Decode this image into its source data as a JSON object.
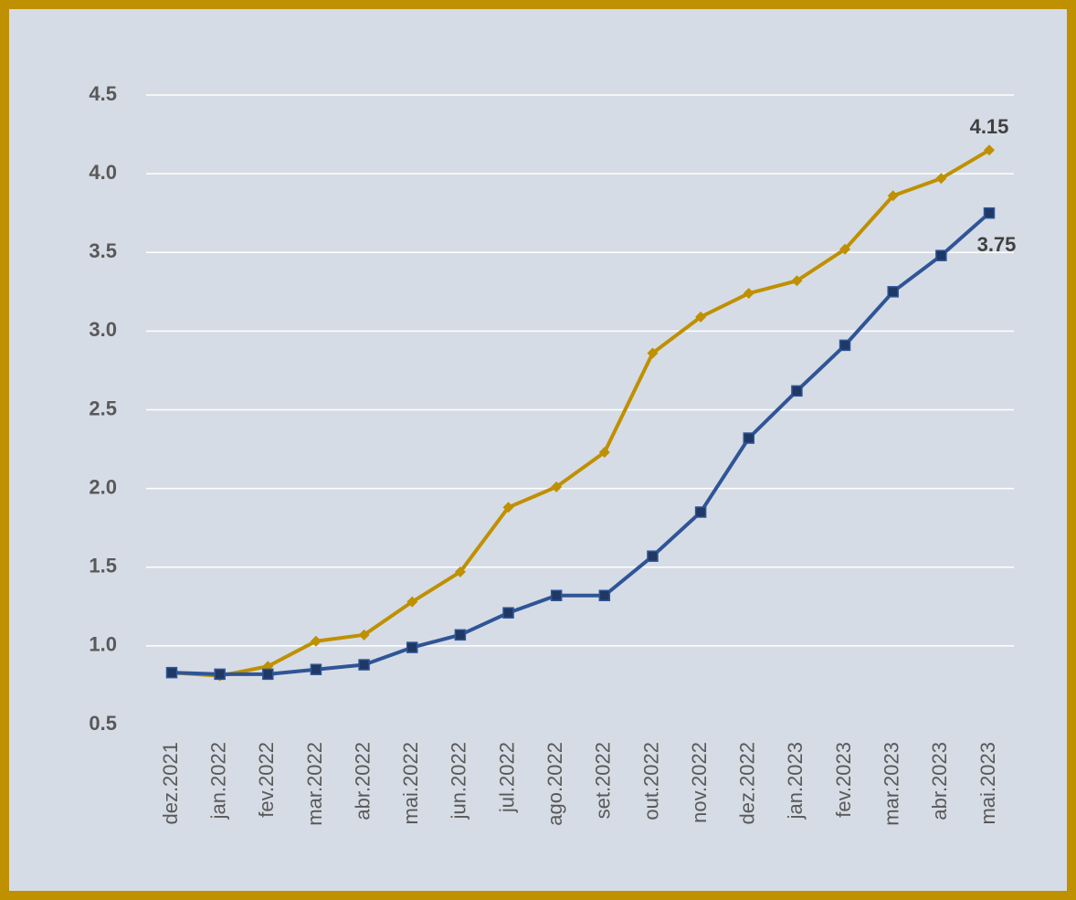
{
  "chart_data": {
    "type": "line",
    "categories": [
      "dez.2021",
      "jan.2022",
      "fev.2022",
      "mar.2022",
      "abr.2022",
      "mai.2022",
      "jun.2022",
      "jul.2022",
      "ago.2022",
      "set.2022",
      "out.2022",
      "nov.2022",
      "dez.2022",
      "jan.2023",
      "fev.2023",
      "mar.2023",
      "abr.2023",
      "mai.2023"
    ],
    "series": [
      {
        "color": "#bf9000",
        "marker": "diamond",
        "values": [
          0.83,
          0.81,
          0.87,
          1.03,
          1.07,
          1.28,
          1.47,
          1.88,
          2.01,
          2.23,
          2.86,
          3.09,
          3.24,
          3.32,
          3.52,
          3.86,
          3.97,
          4.15
        ]
      },
      {
        "color": "#2f5597",
        "marker": "square",
        "values": [
          0.83,
          0.82,
          0.82,
          0.85,
          0.88,
          0.99,
          1.07,
          1.21,
          1.32,
          1.32,
          1.57,
          1.85,
          2.32,
          2.62,
          2.91,
          3.25,
          3.48,
          3.75
        ]
      }
    ],
    "data_labels": "last",
    "ylim": [
      0.5,
      4.5
    ],
    "yticks": [
      0.5,
      {
        "value": 1,
        "label": "1.0"
      },
      1.5,
      {
        "value": 2,
        "label": "2.0"
      },
      2.5,
      {
        "value": 3,
        "label": "3.0"
      },
      3.5,
      {
        "value": 4,
        "label": "4.0"
      },
      4.5
    ],
    "grid": true
  }
}
